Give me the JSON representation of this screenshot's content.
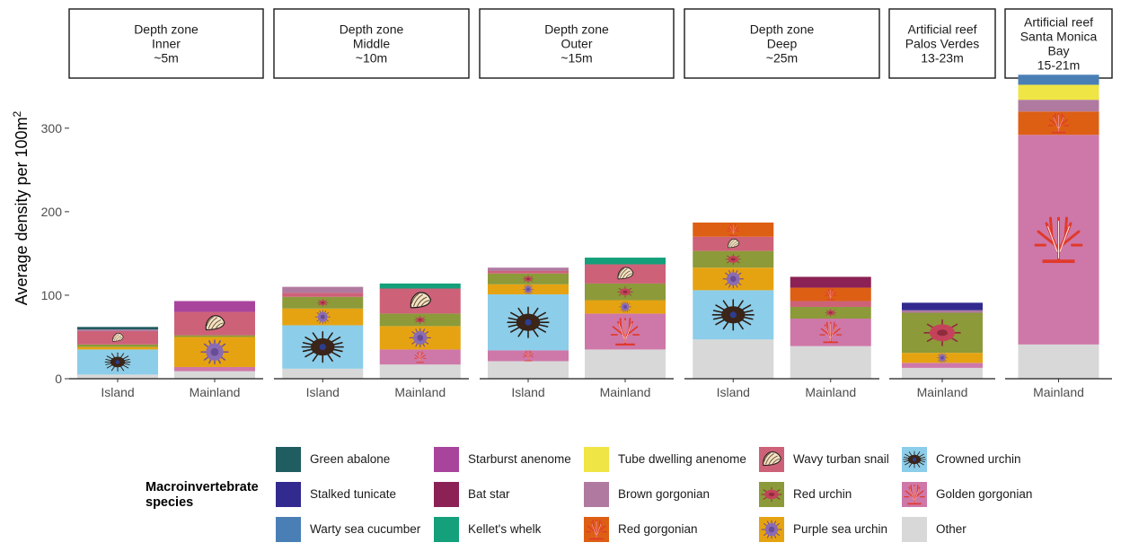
{
  "chart_data": {
    "type": "bar",
    "stacked": true,
    "ylabel": "Average density per 100m",
    "ylabel_superscript": "2",
    "ylim": [
      0,
      360
    ],
    "y_ticks": [
      0,
      100,
      200,
      300
    ],
    "grid": false,
    "legend_placement": "bottom",
    "legend_title": "Macroinvertebrate species",
    "stack_order": [
      "Other",
      "Golden gorgonian",
      "Crowned urchin",
      "Purple sea urchin",
      "Red urchin",
      "Wavy turban snail",
      "Red gorgonian",
      "Brown gorgonian",
      "Tube dwelling anenome",
      "Kellet's whelk",
      "Bat star",
      "Starburst anenome",
      "Warty sea cucumber",
      "Stalked tunicate",
      "Green abalone"
    ],
    "legend_order": [
      "Green abalone",
      "Stalked tunicate",
      "Warty sea cucumber",
      "Starburst anenome",
      "Bat star",
      "Kellet's whelk",
      "Tube dwelling anenome",
      "Brown gorgonian",
      "Red gorgonian",
      "Wavy turban snail",
      "Red urchin",
      "Purple sea urchin",
      "Crowned urchin",
      "Golden gorgonian",
      "Other"
    ],
    "colors": {
      "Green abalone": "#1f5d61",
      "Stalked tunicate": "#322a8f",
      "Warty sea cucumber": "#4a7fb6",
      "Starburst anenome": "#a8449c",
      "Bat star": "#8b2155",
      "Kellet's whelk": "#13a07a",
      "Tube dwelling anenome": "#efe544",
      "Brown gorgonian": "#b07aa0",
      "Red gorgonian": "#dd5f14",
      "Wavy turban snail": "#cd6178",
      "Red urchin": "#8c9a3a",
      "Purple sea urchin": "#e6a311",
      "Crowned urchin": "#8ccde9",
      "Golden gorgonian": "#ce78a9",
      "Other": "#d8d8d8"
    },
    "facets": [
      {
        "strip": [
          "Depth zone",
          "Inner",
          "~5m"
        ],
        "categories": [
          "Island",
          "Mainland"
        ],
        "bars": [
          {
            "Other": 5,
            "Crowned urchin": 30,
            "Purple sea urchin": 3,
            "Red urchin": 3,
            "Wavy turban snail": 16,
            "Brown gorgonian": 2,
            "Green abalone": 3
          },
          {
            "Other": 9,
            "Golden gorgonian": 5,
            "Purple sea urchin": 36,
            "Red urchin": 2,
            "Wavy turban snail": 28,
            "Starburst anenome": 13
          }
        ]
      },
      {
        "strip": [
          "Depth zone",
          "Middle",
          "~10m"
        ],
        "categories": [
          "Island",
          "Mainland"
        ],
        "bars": [
          {
            "Other": 12,
            "Crowned urchin": 52,
            "Purple sea urchin": 20,
            "Red urchin": 14,
            "Wavy turban snail": 5,
            "Brown gorgonian": 7
          },
          {
            "Other": 17,
            "Golden gorgonian": 18,
            "Purple sea urchin": 28,
            "Red urchin": 15,
            "Wavy turban snail": 30,
            "Kellet's whelk": 6
          }
        ]
      },
      {
        "strip": [
          "Depth zone",
          "Outer",
          "~15m"
        ],
        "categories": [
          "Island",
          "Mainland"
        ],
        "bars": [
          {
            "Other": 21,
            "Golden gorgonian": 13,
            "Crowned urchin": 67,
            "Purple sea urchin": 12,
            "Red urchin": 13,
            "Wavy turban snail": 3,
            "Brown gorgonian": 4
          },
          {
            "Other": 35,
            "Golden gorgonian": 43,
            "Purple sea urchin": 16,
            "Red urchin": 20,
            "Wavy turban snail": 23,
            "Kellet's whelk": 8
          }
        ]
      },
      {
        "strip": [
          "Depth zone",
          "Deep",
          "~25m"
        ],
        "categories": [
          "Island",
          "Mainland"
        ],
        "bars": [
          {
            "Other": 47,
            "Crowned urchin": 59,
            "Purple sea urchin": 27,
            "Red urchin": 20,
            "Wavy turban snail": 17,
            "Red gorgonian": 17
          },
          {
            "Other": 39,
            "Golden gorgonian": 33,
            "Red urchin": 14,
            "Wavy turban snail": 7,
            "Red gorgonian": 16,
            "Bat star": 13
          }
        ]
      },
      {
        "strip": [
          "Artificial reef",
          "Palos Verdes",
          "13-23m"
        ],
        "categories": [
          "Mainland"
        ],
        "bars": [
          {
            "Other": 13,
            "Golden gorgonian": 6,
            "Purple sea urchin": 12,
            "Red urchin": 48,
            "Brown gorgonian": 3,
            "Stalked tunicate": 9
          }
        ]
      },
      {
        "strip": [
          "Artificial reef",
          "Santa Monica",
          "Bay",
          "15-21m"
        ],
        "categories": [
          "Mainland"
        ],
        "bars": [
          {
            "Other": 41,
            "Golden gorgonian": 251,
            "Red gorgonian": 28,
            "Brown gorgonian": 14,
            "Tube dwelling anenome": 18,
            "Warty sea cucumber": 12
          }
        ]
      }
    ],
    "species_illustrations": {
      "Crowned urchin": "crowned-urchin-icon",
      "Purple sea urchin": "purple-urchin-icon",
      "Red urchin": "red-urchin-icon",
      "Wavy turban snail": "wavy-turban-snail-icon",
      "Golden gorgonian": "golden-gorgonian-icon",
      "Red gorgonian": "red-gorgonian-icon"
    }
  }
}
